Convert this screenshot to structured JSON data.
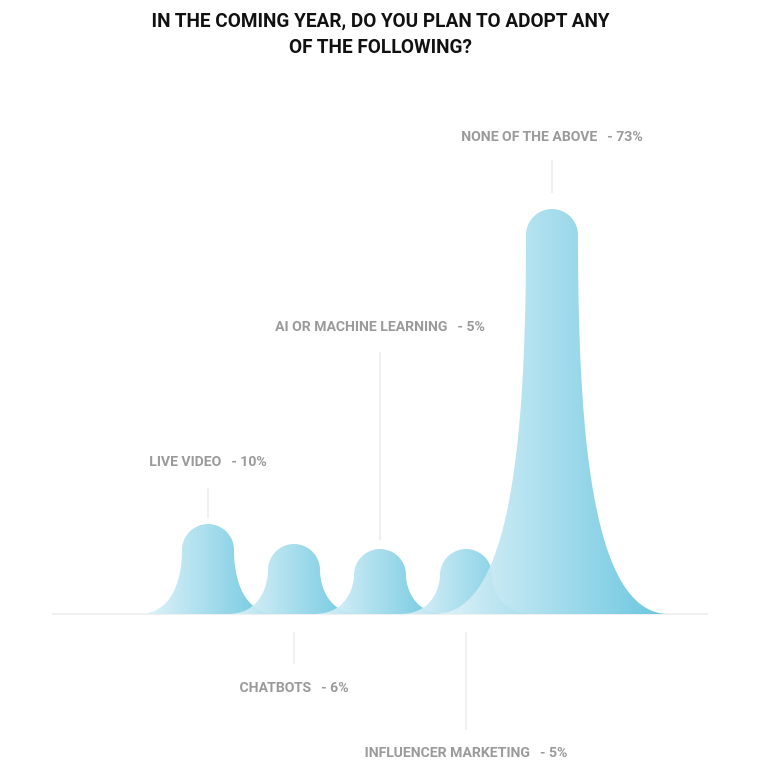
{
  "chart_data": {
    "type": "peak",
    "title": "IN THE COMING YEAR, DO YOU PLAN TO ADOPT ANY OF THE FOLLOWING?",
    "categories": [
      "LIVE VIDEO",
      "CHATBOTS",
      "AI OR MACHINE LEARNING",
      "INFLUENCER MARKETING",
      "NONE OF THE ABOVE"
    ],
    "values": [
      10,
      6,
      5,
      5,
      73
    ],
    "value_labels": [
      "- 10%",
      "- 6%",
      "- 5%",
      "- 5%",
      "- 73%"
    ],
    "color": "#5bc0dc"
  }
}
